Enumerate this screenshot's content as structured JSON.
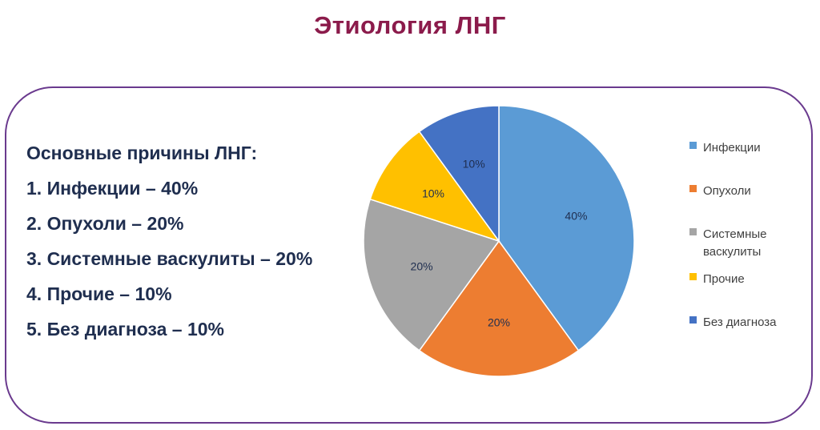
{
  "slide": {
    "title": "Этиология ЛНГ"
  },
  "causes": {
    "heading": "Основные причины ЛНГ:",
    "items": [
      "1. Инфекции – 40%",
      "2. Опухоли – 20%",
      "3. Системные васкулиты – 20%",
      "4. Прочие – 10%",
      "5. Без диагноза – 10%"
    ]
  },
  "chart_data": {
    "type": "pie",
    "title": "",
    "categories": [
      "Инфекции",
      "Опухоли",
      "Системные васкулиты",
      "Прочие",
      "Без диагноза"
    ],
    "legend_labels": [
      [
        "Инфекции"
      ],
      [
        "Опухоли"
      ],
      [
        "Системные",
        "васкулиты"
      ],
      [
        "Прочие"
      ],
      [
        "Без диагноза"
      ]
    ],
    "values": [
      40,
      20,
      20,
      10,
      10
    ],
    "data_labels": [
      "40%",
      "20%",
      "20%",
      "10%",
      "10%"
    ],
    "colors": [
      "#5b9bd5",
      "#ed7d31",
      "#a5a5a5",
      "#ffc000",
      "#4472c4"
    ],
    "legend_position": "right"
  }
}
